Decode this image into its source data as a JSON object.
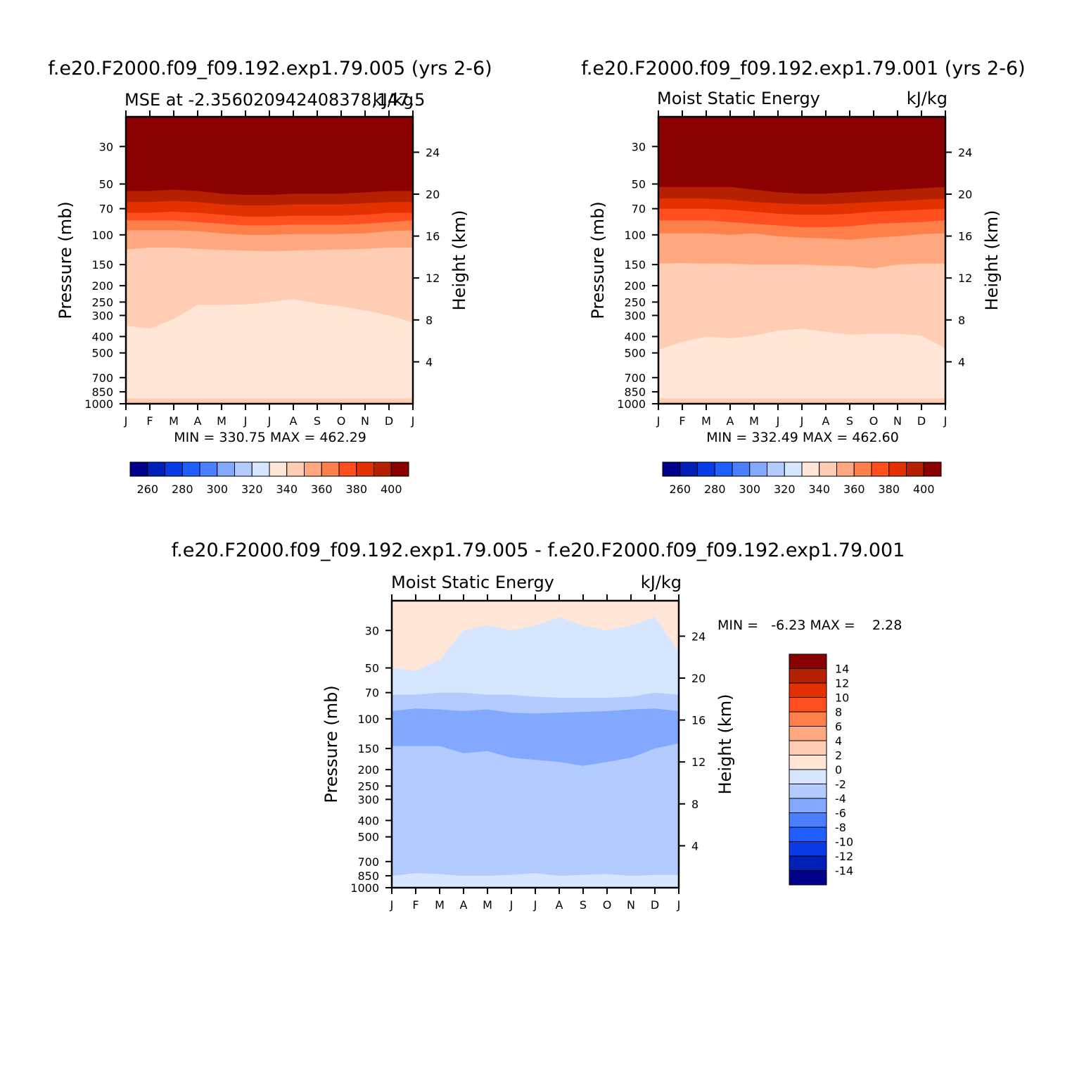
{
  "months": [
    "J",
    "F",
    "M",
    "A",
    "M",
    "J",
    "J",
    "A",
    "S",
    "O",
    "N",
    "D",
    "J"
  ],
  "pressure_ticks": [
    30,
    50,
    70,
    100,
    150,
    200,
    250,
    300,
    400,
    500,
    700,
    850,
    1000
  ],
  "height_ticks": [
    4,
    8,
    12,
    16,
    20,
    24
  ],
  "chart_data": [
    {
      "type": "heatmap",
      "title": "f.e20.F2000.f09_f09.192.exp1.79.005 (yrs 2-6)",
      "left_label": "MSE at -2.356020942408378,147.5",
      "right_label": "kJ/kg",
      "ylabel": "Pressure (mb)",
      "y2label": "Height (km)",
      "stats": "MIN = 330.75 MAX = 462.29",
      "x": [
        "J",
        "F",
        "M",
        "A",
        "M",
        "J",
        "J",
        "A",
        "S",
        "O",
        "N",
        "D",
        "J"
      ],
      "levels": [
        30,
        50,
        70,
        100,
        150,
        200,
        250,
        300,
        400,
        500,
        700,
        850,
        1000
      ],
      "colorbar": {
        "ticks": [
          "260",
          "280",
          "300",
          "320",
          "340",
          "360",
          "380",
          "400"
        ],
        "colors": [
          "#00008b",
          "#0020b8",
          "#0a3ce6",
          "#1f5fff",
          "#4a80ff",
          "#82a8ff",
          "#b4cbff",
          "#d6e6ff",
          "#ffe6d6",
          "#ffcdb4",
          "#ffa880",
          "#ff7f4a",
          "#ff4f1f",
          "#e33200",
          "#b52000",
          "#8b0000"
        ]
      },
      "layers": [
        {
          "label": ">400",
          "color": "#8b0000",
          "boundary": [
            55,
            55,
            54,
            55,
            57,
            58,
            58,
            57,
            57,
            57,
            56,
            55,
            55
          ]
        },
        {
          "label": "390-400",
          "color": "#b52000",
          "boundary": [
            64,
            64,
            63,
            64,
            66,
            67,
            67,
            66,
            66,
            66,
            65,
            64,
            64
          ]
        },
        {
          "label": "380-390",
          "color": "#e33200",
          "boundary": [
            74,
            74,
            73,
            74,
            76,
            78,
            78,
            77,
            77,
            77,
            76,
            74,
            74
          ]
        },
        {
          "label": "370-380",
          "color": "#ff4f1f",
          "boundary": [
            82,
            82,
            82,
            84,
            86,
            88,
            88,
            87,
            87,
            87,
            86,
            84,
            82
          ]
        },
        {
          "label": "360-370",
          "color": "#ff7f4a",
          "boundary": [
            94,
            94,
            94,
            95,
            98,
            100,
            100,
            99,
            99,
            99,
            98,
            95,
            94
          ]
        },
        {
          "label": "350-360",
          "color": "#ffa880",
          "boundary": [
            122,
            119,
            119,
            121,
            123,
            124,
            125,
            124,
            123,
            122,
            121,
            119,
            119
          ]
        },
        {
          "label": "340-350",
          "color": "#ffcdb4",
          "boundary": [
            345,
            360,
            315,
            260,
            260,
            258,
            250,
            240,
            255,
            265,
            280,
            300,
            330
          ]
        },
        {
          "label": "330-340",
          "color": "#ffe6d6",
          "boundary": [
            930,
            930,
            930,
            930,
            930,
            930,
            930,
            930,
            930,
            930,
            930,
            930,
            930
          ]
        },
        {
          "label": "340-350",
          "color": "#ffcdb4",
          "boundary": [
            1000,
            1000,
            1000,
            1000,
            1000,
            1000,
            1000,
            1000,
            1000,
            1000,
            1000,
            1000,
            1000
          ]
        }
      ]
    },
    {
      "type": "heatmap",
      "title": "f.e20.F2000.f09_f09.192.exp1.79.001 (yrs 2-6)",
      "left_label": "Moist Static Energy",
      "right_label": "kJ/kg",
      "ylabel": "Pressure (mb)",
      "y2label": "Height (km)",
      "stats": "MIN = 332.49 MAX = 462.60",
      "x": [
        "J",
        "F",
        "M",
        "A",
        "M",
        "J",
        "J",
        "A",
        "S",
        "O",
        "N",
        "D",
        "J"
      ],
      "levels": [
        30,
        50,
        70,
        100,
        150,
        200,
        250,
        300,
        400,
        500,
        700,
        850,
        1000
      ],
      "colorbar": {
        "ticks": [
          "260",
          "280",
          "300",
          "320",
          "340",
          "360",
          "380",
          "400"
        ],
        "colors": [
          "#00008b",
          "#0020b8",
          "#0a3ce6",
          "#1f5fff",
          "#4a80ff",
          "#82a8ff",
          "#b4cbff",
          "#d6e6ff",
          "#ffe6d6",
          "#ffcdb4",
          "#ffa880",
          "#ff7f4a",
          "#ff4f1f",
          "#e33200",
          "#b52000",
          "#8b0000"
        ]
      },
      "layers": [
        {
          "label": ">400",
          "color": "#8b0000",
          "boundary": [
            52,
            52,
            52,
            52,
            54,
            56,
            57,
            57,
            56,
            55,
            54,
            53,
            52
          ]
        },
        {
          "label": "390-400",
          "color": "#b52000",
          "boundary": [
            61,
            61,
            61,
            62,
            64,
            65,
            66,
            66,
            65,
            64,
            63,
            62,
            61
          ]
        },
        {
          "label": "380-390",
          "color": "#e33200",
          "boundary": [
            70,
            70,
            70,
            71,
            73,
            75,
            76,
            76,
            75,
            73,
            72,
            71,
            70
          ]
        },
        {
          "label": "370-380",
          "color": "#ff4f1f",
          "boundary": [
            82,
            82,
            82,
            84,
            86,
            88,
            90,
            90,
            89,
            86,
            85,
            84,
            82
          ]
        },
        {
          "label": "360-370",
          "color": "#ff7f4a",
          "boundary": [
            98,
            98,
            98,
            100,
            98,
            102,
            104,
            105,
            107,
            104,
            102,
            99,
            98
          ]
        },
        {
          "label": "350-360",
          "color": "#ffa880",
          "boundary": [
            148,
            147,
            148,
            148,
            150,
            150,
            150,
            152,
            153,
            158,
            150,
            148,
            148
          ]
        },
        {
          "label": "340-350",
          "color": "#ffcdb4",
          "boundary": [
            480,
            430,
            400,
            410,
            395,
            370,
            360,
            375,
            390,
            385,
            385,
            395,
            470
          ]
        },
        {
          "label": "330-340",
          "color": "#ffe6d6",
          "boundary": [
            930,
            930,
            930,
            930,
            930,
            930,
            930,
            930,
            930,
            930,
            930,
            930,
            930
          ]
        },
        {
          "label": "340-350",
          "color": "#ffcdb4",
          "boundary": [
            1000,
            1000,
            1000,
            1000,
            1000,
            1000,
            1000,
            1000,
            1000,
            1000,
            1000,
            1000,
            1000
          ]
        }
      ]
    },
    {
      "type": "heatmap",
      "title": "f.e20.F2000.f09_f09.192.exp1.79.005 - f.e20.F2000.f09_f09.192.exp1.79.001",
      "left_label": "Moist Static Energy",
      "right_label": "kJ/kg",
      "ylabel": "Pressure (mb)",
      "y2label": "Height (km)",
      "stats_label": "MIN =   -6.23 MAX =    2.28",
      "x": [
        "J",
        "F",
        "M",
        "A",
        "M",
        "J",
        "J",
        "A",
        "S",
        "O",
        "N",
        "D",
        "J"
      ],
      "levels": [
        30,
        50,
        70,
        100,
        150,
        200,
        250,
        300,
        400,
        500,
        700,
        850,
        1000
      ],
      "colorbar": {
        "ticks": [
          "14",
          "12",
          "10",
          "8",
          "6",
          "4",
          "2",
          "0",
          "-2",
          "-4",
          "-6",
          "-8",
          "-10",
          "-12",
          "-14"
        ],
        "colors": [
          "#8b0000",
          "#b52000",
          "#e33200",
          "#ff4f1f",
          "#ff7f4a",
          "#ffa880",
          "#ffcdb4",
          "#ffe6d6",
          "#d6e6ff",
          "#b4cbff",
          "#82a8ff",
          "#4a80ff",
          "#1f5fff",
          "#0a3ce6",
          "#0020b8",
          "#00008b"
        ]
      },
      "layers": [
        {
          "label": "0-2",
          "color": "#ffe6d6",
          "boundary": [
            50,
            52,
            45,
            30,
            28,
            30,
            28,
            25,
            28,
            30,
            28,
            25,
            40
          ]
        },
        {
          "label": "-2-0",
          "color": "#d6e6ff",
          "boundary": [
            72,
            72,
            70,
            70,
            72,
            72,
            74,
            75,
            75,
            75,
            74,
            70,
            72
          ]
        },
        {
          "label": "-4--2",
          "color": "#b4cbff",
          "boundary": [
            90,
            87,
            88,
            90,
            88,
            92,
            93,
            92,
            91,
            90,
            88,
            87,
            90
          ]
        },
        {
          "label": "-6--4",
          "color": "#82a8ff",
          "boundary": [
            145,
            145,
            145,
            160,
            155,
            170,
            175,
            180,
            190,
            180,
            170,
            150,
            140
          ]
        },
        {
          "label": "-4--2",
          "color": "#b4cbff",
          "boundary": [
            850,
            820,
            830,
            850,
            850,
            840,
            820,
            850,
            840,
            830,
            850,
            840,
            840
          ]
        },
        {
          "label": "-2-0",
          "color": "#d6e6ff",
          "boundary": [
            1000,
            1000,
            1000,
            1000,
            1000,
            1000,
            1000,
            1000,
            1000,
            1000,
            1000,
            1000,
            1000
          ]
        }
      ]
    }
  ]
}
